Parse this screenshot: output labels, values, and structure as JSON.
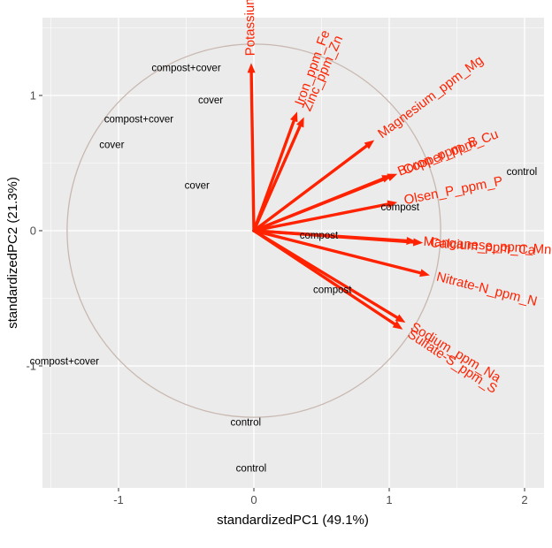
{
  "chart_data": {
    "type": "scatter",
    "subtype": "pca-biplot",
    "title": "",
    "xlabel": "standardizedPC1 (49.1%)",
    "ylabel": "standardizedPC2 (21.3%)",
    "xlim": [
      -1.55,
      2.1
    ],
    "ylim": [
      -1.88,
      1.55
    ],
    "x_ticks": [
      -1,
      0,
      1,
      2
    ],
    "x_tick_labels": [
      "-1",
      "0",
      "1",
      "2"
    ],
    "y_ticks": [
      -1,
      0,
      1
    ],
    "y_tick_labels": [
      "-1",
      "0",
      "1"
    ],
    "grid": true,
    "background": "#ebebeb",
    "correlation_circle": {
      "radius": 1.38,
      "color": "#c8b8b0"
    },
    "arrow_color": "#ff2200",
    "observations": [
      {
        "label": "compost+cover",
        "x": -0.5,
        "y": 1.2
      },
      {
        "label": "cover",
        "x": -0.32,
        "y": 0.96
      },
      {
        "label": "compost+cover",
        "x": -0.85,
        "y": 0.82
      },
      {
        "label": "cover",
        "x": -1.05,
        "y": 0.63
      },
      {
        "label": "cover",
        "x": -0.42,
        "y": 0.33
      },
      {
        "label": "control",
        "x": 1.98,
        "y": 0.43
      },
      {
        "label": "compost",
        "x": 1.08,
        "y": 0.17
      },
      {
        "label": "compost",
        "x": 0.48,
        "y": -0.04
      },
      {
        "label": "compost",
        "x": 0.58,
        "y": -0.44
      },
      {
        "label": "compost+cover",
        "x": -1.4,
        "y": -0.97
      },
      {
        "label": "control",
        "x": -0.06,
        "y": -1.42
      },
      {
        "label": "control",
        "x": -0.02,
        "y": -1.76
      }
    ],
    "variables": [
      {
        "label": "Potassium_ppm_K",
        "x": -0.02,
        "y": 1.24
      },
      {
        "label": "Iron_ppm_Fe",
        "x": 0.32,
        "y": 0.88
      },
      {
        "label": "Zinc_ppm_Zn",
        "x": 0.37,
        "y": 0.84
      },
      {
        "label": "Magnesium_ppm_Mg",
        "x": 0.89,
        "y": 0.67
      },
      {
        "label": "Copper_ppm_Cu",
        "x": 1.06,
        "y": 0.42
      },
      {
        "label": "Boron_ppm_B",
        "x": 1.02,
        "y": 0.41
      },
      {
        "label": "Olsen_P_ppm_P",
        "x": 1.06,
        "y": 0.21
      },
      {
        "label": "Manganese_ppm_Mn",
        "x": 1.2,
        "y": -0.08
      },
      {
        "label": "Calcium_ppm_Ca",
        "x": 1.25,
        "y": -0.09
      },
      {
        "label": "Nitrate-N_ppm_N",
        "x": 1.3,
        "y": -0.33
      },
      {
        "label": "Sodium_ppm_Na",
        "x": 1.12,
        "y": -0.68
      },
      {
        "label": "Sulfate-S_ppm_S",
        "x": 1.1,
        "y": -0.73
      }
    ]
  }
}
